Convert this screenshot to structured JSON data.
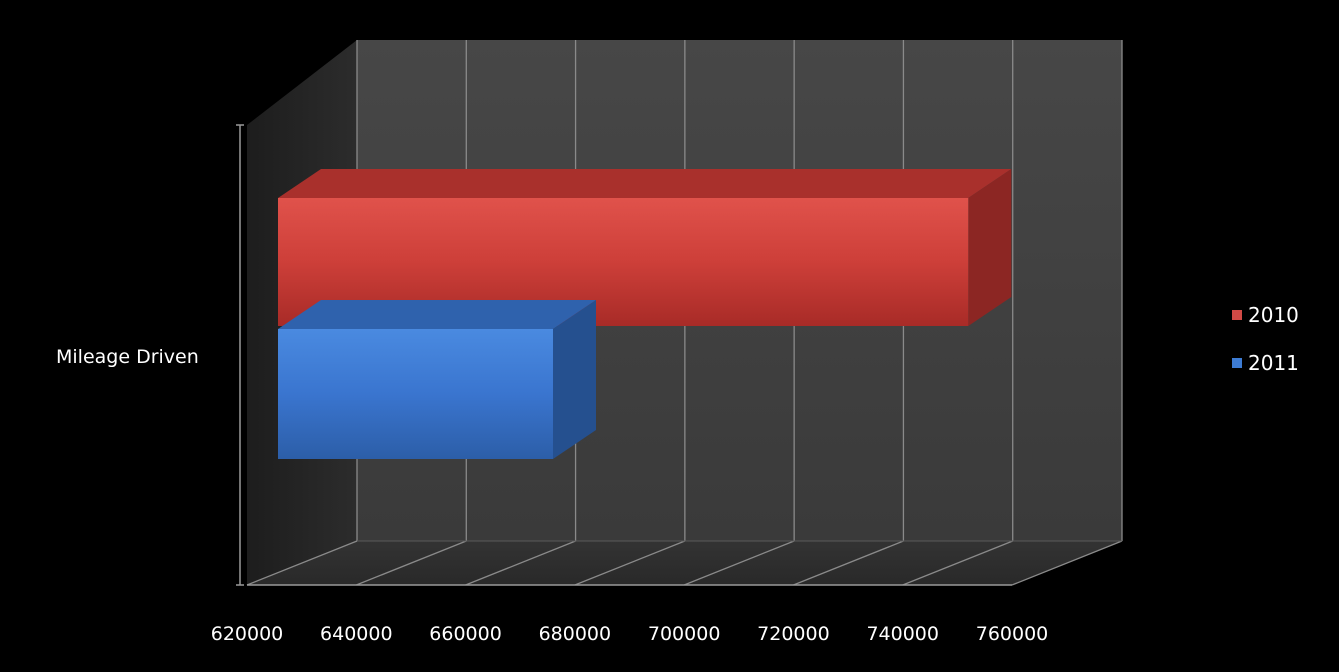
{
  "chart_data": {
    "type": "bar",
    "orientation": "horizontal",
    "style": "3d",
    "categories": [
      "Mileage Driven"
    ],
    "series": [
      {
        "name": "2010",
        "values": [
          752000
        ],
        "color": "#d24a45"
      },
      {
        "name": "2011",
        "values": [
          676000
        ],
        "color": "#3d7cd4"
      }
    ],
    "xlim": [
      620000,
      760000
    ],
    "x_ticks": [
      "620000",
      "640000",
      "660000",
      "680000",
      "700000",
      "720000",
      "740000",
      "760000"
    ],
    "title": "",
    "xlabel": "",
    "ylabel": "",
    "grid": true,
    "legend_position": "right"
  }
}
